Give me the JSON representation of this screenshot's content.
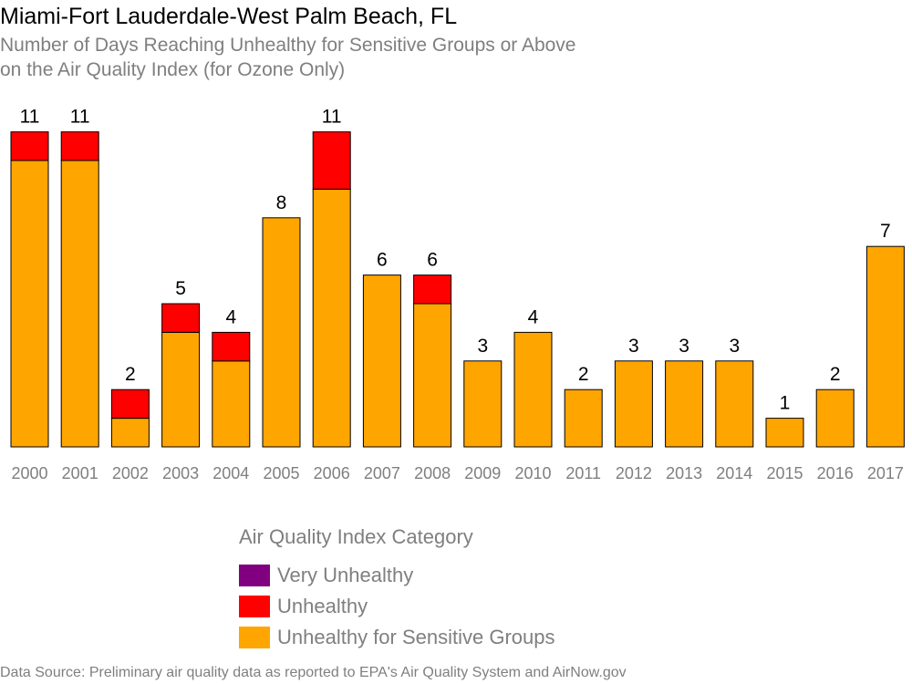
{
  "colors": {
    "very_unhealthy": "#800080",
    "unhealthy": "#ff0000",
    "usg": "#ffa500",
    "axis_text": "#7f7f7f"
  },
  "chart_data": {
    "type": "bar",
    "stacked": true,
    "title": "Miami-Fort Lauderdale-West Palm Beach, FL",
    "subtitle_lines": [
      "Number of Days Reaching Unhealthy for Sensitive Groups or Above",
      "on the Air Quality Index (for Ozone Only)"
    ],
    "categories": [
      "2000",
      "2001",
      "2002",
      "2003",
      "2004",
      "2005",
      "2006",
      "2007",
      "2008",
      "2009",
      "2010",
      "2011",
      "2012",
      "2013",
      "2014",
      "2015",
      "2016",
      "2017"
    ],
    "series": [
      {
        "name": "Unhealthy for Sensitive Groups",
        "color": "#ffa500",
        "values": [
          10,
          10,
          1,
          4,
          3,
          8,
          9,
          6,
          5,
          3,
          4,
          2,
          3,
          3,
          3,
          1,
          2,
          7
        ]
      },
      {
        "name": "Unhealthy",
        "color": "#ff0000",
        "values": [
          1,
          1,
          1,
          1,
          1,
          0,
          2,
          0,
          1,
          0,
          0,
          0,
          0,
          0,
          0,
          0,
          0,
          0
        ]
      },
      {
        "name": "Very Unhealthy",
        "color": "#800080",
        "values": [
          0,
          0,
          0,
          0,
          0,
          0,
          0,
          0,
          0,
          0,
          0,
          0,
          0,
          0,
          0,
          0,
          0,
          0
        ]
      }
    ],
    "totals": [
      11,
      11,
      2,
      5,
      4,
      8,
      11,
      6,
      6,
      3,
      4,
      2,
      3,
      3,
      3,
      1,
      2,
      7
    ],
    "ylim": [
      0,
      11
    ],
    "grid": false,
    "legend": {
      "title": "Air Quality Index Category",
      "placement": "bottom",
      "items": [
        {
          "label": "Very Unhealthy",
          "color": "#800080"
        },
        {
          "label": "Unhealthy",
          "color": "#ff0000"
        },
        {
          "label": "Unhealthy for Sensitive Groups",
          "color": "#ffa500"
        }
      ]
    },
    "source": "Data Source: Preliminary air quality data as reported to EPA's Air Quality System and AirNow.gov"
  }
}
